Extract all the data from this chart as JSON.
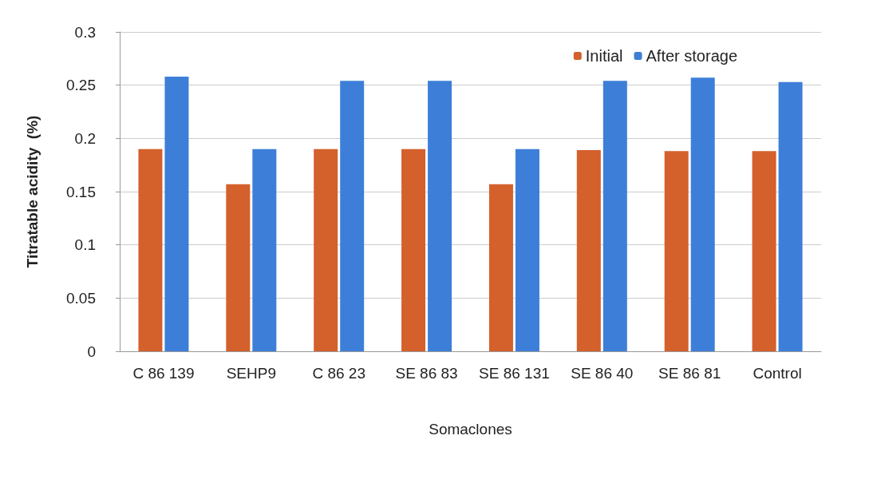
{
  "chart_data": {
    "type": "bar",
    "xlabel": "Somaclones",
    "ylabel": "Titratable acidity  (%)",
    "categories": [
      "C 86 139",
      "SEHP9",
      "C 86 23",
      "SE 86 83",
      "SE 86 131",
      "SE 86 40",
      "SE 86 81",
      "Control"
    ],
    "series": [
      {
        "name": "Initial",
        "color": "#d4602c",
        "values": [
          0.19,
          0.157,
          0.19,
          0.19,
          0.157,
          0.189,
          0.188,
          0.188
        ]
      },
      {
        "name": "After storage",
        "color": "#3d7fd8",
        "values": [
          0.258,
          0.19,
          0.254,
          0.254,
          0.19,
          0.254,
          0.257,
          0.253
        ]
      }
    ],
    "ylim": [
      0,
      0.3
    ],
    "yticks": [
      0,
      0.05,
      0.1,
      0.15,
      0.2,
      0.25,
      0.3
    ],
    "grid": "y",
    "legend": "top right"
  }
}
